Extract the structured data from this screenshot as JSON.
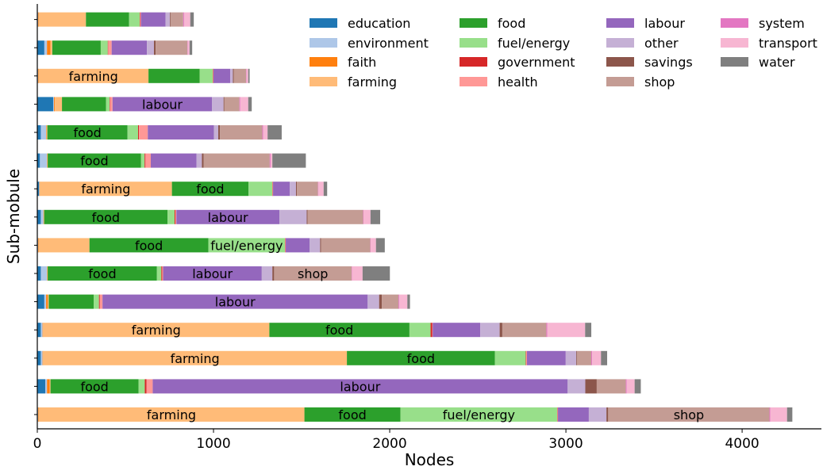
{
  "chart_data": {
    "type": "bar",
    "orientation": "horizontal",
    "stacked": true,
    "xlabel": "Nodes",
    "ylabel": "Sub-mobule",
    "xlim": [
      0,
      4450
    ],
    "xticks": [
      0,
      1000,
      2000,
      3000,
      4000
    ],
    "legend_position": "top-right",
    "categories_list": [
      "education",
      "environment",
      "faith",
      "farming",
      "food",
      "fuel/energy",
      "government",
      "health",
      "labour",
      "other",
      "savings",
      "shop",
      "system",
      "transport",
      "water"
    ],
    "colors": {
      "education": "#1f77b4",
      "environment": "#aec7e8",
      "faith": "#ff7f0e",
      "farming": "#ffbb78",
      "food": "#2ca02c",
      "fuel/energy": "#98df8a",
      "government": "#d62728",
      "health": "#ff9896",
      "labour": "#9467bd",
      "other": "#c5b0d5",
      "savings": "#8c564b",
      "shop": "#c49c94",
      "system": "#e377c2",
      "transport": "#f7b6d2",
      "water": "#7f7f7f"
    },
    "bars": [
      {
        "segments": [
          [
            "education",
            2
          ],
          [
            "environment",
            2
          ],
          [
            "faith",
            2
          ],
          [
            "farming",
            270
          ],
          [
            "food",
            245
          ],
          [
            "fuel/energy",
            60
          ],
          [
            "government",
            2
          ],
          [
            "health",
            5
          ],
          [
            "labour",
            140
          ],
          [
            "other",
            25
          ],
          [
            "savings",
            5
          ],
          [
            "shop",
            70
          ],
          [
            "system",
            5
          ],
          [
            "transport",
            35
          ],
          [
            "water",
            20
          ]
        ]
      },
      {
        "segments": [
          [
            "education",
            40
          ],
          [
            "environment",
            15
          ],
          [
            "faith",
            20
          ],
          [
            "farming",
            10
          ],
          [
            "food",
            275
          ],
          [
            "fuel/energy",
            40
          ],
          [
            "government",
            2
          ],
          [
            "health",
            20
          ],
          [
            "labour",
            200
          ],
          [
            "other",
            40
          ],
          [
            "savings",
            10
          ],
          [
            "shop",
            180
          ],
          [
            "system",
            2
          ],
          [
            "transport",
            10
          ],
          [
            "water",
            15
          ]
        ]
      },
      {
        "segments": [
          [
            "education",
            2
          ],
          [
            "environment",
            2
          ],
          [
            "faith",
            2
          ],
          [
            "farming",
            625
          ],
          [
            "food",
            290
          ],
          [
            "fuel/energy",
            75
          ],
          [
            "government",
            2
          ],
          [
            "health",
            2
          ],
          [
            "labour",
            95
          ],
          [
            "other",
            15
          ],
          [
            "savings",
            5
          ],
          [
            "shop",
            70
          ],
          [
            "system",
            2
          ],
          [
            "transport",
            10
          ],
          [
            "water",
            8
          ]
        ]
      },
      {
        "segments": [
          [
            "education",
            90
          ],
          [
            "environment",
            5
          ],
          [
            "faith",
            5
          ],
          [
            "farming",
            40
          ],
          [
            "food",
            250
          ],
          [
            "fuel/energy",
            20
          ],
          [
            "government",
            2
          ],
          [
            "health",
            15
          ],
          [
            "labour",
            565
          ],
          [
            "other",
            65
          ],
          [
            "savings",
            5
          ],
          [
            "shop",
            85
          ],
          [
            "system",
            5
          ],
          [
            "transport",
            45
          ],
          [
            "water",
            20
          ]
        ]
      },
      {
        "segments": [
          [
            "education",
            20
          ],
          [
            "environment",
            30
          ],
          [
            "faith",
            2
          ],
          [
            "farming",
            5
          ],
          [
            "food",
            455
          ],
          [
            "fuel/energy",
            60
          ],
          [
            "government",
            5
          ],
          [
            "health",
            50
          ],
          [
            "labour",
            375
          ],
          [
            "other",
            25
          ],
          [
            "savings",
            10
          ],
          [
            "shop",
            240
          ],
          [
            "system",
            5
          ],
          [
            "transport",
            25
          ],
          [
            "water",
            80
          ]
        ]
      },
      {
        "segments": [
          [
            "education",
            15
          ],
          [
            "environment",
            40
          ],
          [
            "faith",
            2
          ],
          [
            "farming",
            2
          ],
          [
            "food",
            530
          ],
          [
            "fuel/energy",
            20
          ],
          [
            "government",
            5
          ],
          [
            "health",
            30
          ],
          [
            "labour",
            260
          ],
          [
            "other",
            30
          ],
          [
            "savings",
            10
          ],
          [
            "shop",
            375
          ],
          [
            "system",
            5
          ],
          [
            "transport",
            10
          ],
          [
            "water",
            190
          ]
        ]
      },
      {
        "segments": [
          [
            "education",
            10
          ],
          [
            "environment",
            2
          ],
          [
            "faith",
            2
          ],
          [
            "farming",
            750
          ],
          [
            "food",
            435
          ],
          [
            "fuel/energy",
            135
          ],
          [
            "government",
            2
          ],
          [
            "health",
            2
          ],
          [
            "labour",
            95
          ],
          [
            "other",
            35
          ],
          [
            "savings",
            5
          ],
          [
            "shop",
            120
          ],
          [
            "system",
            2
          ],
          [
            "transport",
            30
          ],
          [
            "water",
            20
          ]
        ]
      },
      {
        "segments": [
          [
            "education",
            20
          ],
          [
            "environment",
            15
          ],
          [
            "faith",
            2
          ],
          [
            "farming",
            2
          ],
          [
            "food",
            700
          ],
          [
            "fuel/energy",
            40
          ],
          [
            "government",
            5
          ],
          [
            "health",
            5
          ],
          [
            "labour",
            585
          ],
          [
            "other",
            155
          ],
          [
            "savings",
            5
          ],
          [
            "shop",
            315
          ],
          [
            "system",
            2
          ],
          [
            "transport",
            40
          ],
          [
            "water",
            55
          ]
        ]
      },
      {
        "segments": [
          [
            "education",
            2
          ],
          [
            "environment",
            2
          ],
          [
            "faith",
            2
          ],
          [
            "farming",
            290
          ],
          [
            "food",
            675
          ],
          [
            "fuel/energy",
            435
          ],
          [
            "government",
            2
          ],
          [
            "health",
            2
          ],
          [
            "labour",
            135
          ],
          [
            "other",
            60
          ],
          [
            "savings",
            5
          ],
          [
            "shop",
            280
          ],
          [
            "system",
            2
          ],
          [
            "transport",
            30
          ],
          [
            "water",
            50
          ]
        ]
      },
      {
        "segments": [
          [
            "education",
            20
          ],
          [
            "environment",
            35
          ],
          [
            "faith",
            2
          ],
          [
            "farming",
            2
          ],
          [
            "food",
            620
          ],
          [
            "fuel/energy",
            25
          ],
          [
            "government",
            5
          ],
          [
            "health",
            5
          ],
          [
            "labour",
            560
          ],
          [
            "other",
            60
          ],
          [
            "savings",
            10
          ],
          [
            "shop",
            440
          ],
          [
            "system",
            2
          ],
          [
            "transport",
            60
          ],
          [
            "water",
            155
          ]
        ]
      },
      {
        "segments": [
          [
            "education",
            40
          ],
          [
            "environment",
            10
          ],
          [
            "faith",
            10
          ],
          [
            "farming",
            5
          ],
          [
            "food",
            255
          ],
          [
            "fuel/energy",
            30
          ],
          [
            "government",
            5
          ],
          [
            "health",
            15
          ],
          [
            "labour",
            1505
          ],
          [
            "other",
            65
          ],
          [
            "savings",
            15
          ],
          [
            "shop",
            95
          ],
          [
            "system",
            5
          ],
          [
            "transport",
            45
          ],
          [
            "water",
            15
          ]
        ]
      },
      {
        "segments": [
          [
            "education",
            20
          ],
          [
            "environment",
            10
          ],
          [
            "faith",
            2
          ],
          [
            "farming",
            1285
          ],
          [
            "food",
            795
          ],
          [
            "fuel/energy",
            120
          ],
          [
            "government",
            10
          ],
          [
            "health",
            2
          ],
          [
            "labour",
            270
          ],
          [
            "other",
            110
          ],
          [
            "savings",
            15
          ],
          [
            "shop",
            250
          ],
          [
            "system",
            5
          ],
          [
            "transport",
            215
          ],
          [
            "water",
            35
          ]
        ]
      },
      {
        "segments": [
          [
            "education",
            20
          ],
          [
            "environment",
            10
          ],
          [
            "faith",
            2
          ],
          [
            "farming",
            1725
          ],
          [
            "food",
            840
          ],
          [
            "fuel/energy",
            175
          ],
          [
            "government",
            2
          ],
          [
            "health",
            5
          ],
          [
            "labour",
            220
          ],
          [
            "other",
            60
          ],
          [
            "savings",
            5
          ],
          [
            "shop",
            80
          ],
          [
            "system",
            5
          ],
          [
            "transport",
            50
          ],
          [
            "water",
            35
          ]
        ]
      },
      {
        "segments": [
          [
            "education",
            45
          ],
          [
            "environment",
            10
          ],
          [
            "faith",
            15
          ],
          [
            "farming",
            5
          ],
          [
            "food",
            500
          ],
          [
            "fuel/energy",
            35
          ],
          [
            "government",
            10
          ],
          [
            "health",
            35
          ],
          [
            "labour",
            2355
          ],
          [
            "other",
            100
          ],
          [
            "savings",
            65
          ],
          [
            "shop",
            165
          ],
          [
            "system",
            5
          ],
          [
            "transport",
            45
          ],
          [
            "water",
            35
          ]
        ]
      },
      {
        "segments": [
          [
            "education",
            2
          ],
          [
            "environment",
            2
          ],
          [
            "faith",
            2
          ],
          [
            "farming",
            1510
          ],
          [
            "food",
            545
          ],
          [
            "fuel/energy",
            890
          ],
          [
            "government",
            2
          ],
          [
            "health",
            2
          ],
          [
            "labour",
            175
          ],
          [
            "other",
            100
          ],
          [
            "savings",
            10
          ],
          [
            "shop",
            915
          ],
          [
            "system",
            5
          ],
          [
            "transport",
            95
          ],
          [
            "water",
            30
          ]
        ]
      }
    ],
    "segment_labels": [
      {
        "bar": 2,
        "category": "farming",
        "text": "farming"
      },
      {
        "bar": 3,
        "category": "labour",
        "text": "labour"
      },
      {
        "bar": 4,
        "category": "food",
        "text": "food"
      },
      {
        "bar": 5,
        "category": "food",
        "text": "food"
      },
      {
        "bar": 6,
        "category": "farming",
        "text": "farming"
      },
      {
        "bar": 6,
        "category": "food",
        "text": "food"
      },
      {
        "bar": 7,
        "category": "food",
        "text": "food"
      },
      {
        "bar": 7,
        "category": "labour",
        "text": "labour"
      },
      {
        "bar": 8,
        "category": "food",
        "text": "food"
      },
      {
        "bar": 8,
        "category": "fuel/energy",
        "text": "fuel/energy"
      },
      {
        "bar": 9,
        "category": "food",
        "text": "food"
      },
      {
        "bar": 9,
        "category": "labour",
        "text": "labour"
      },
      {
        "bar": 9,
        "category": "shop",
        "text": "shop"
      },
      {
        "bar": 10,
        "category": "labour",
        "text": "labour"
      },
      {
        "bar": 11,
        "category": "farming",
        "text": "farming"
      },
      {
        "bar": 11,
        "category": "food",
        "text": "food"
      },
      {
        "bar": 12,
        "category": "farming",
        "text": "farming"
      },
      {
        "bar": 12,
        "category": "food",
        "text": "food"
      },
      {
        "bar": 13,
        "category": "food",
        "text": "food"
      },
      {
        "bar": 13,
        "category": "labour",
        "text": "labour"
      },
      {
        "bar": 14,
        "category": "farming",
        "text": "farming"
      },
      {
        "bar": 14,
        "category": "food",
        "text": "food"
      },
      {
        "bar": 14,
        "category": "fuel/energy",
        "text": "fuel/energy"
      },
      {
        "bar": 14,
        "category": "shop",
        "text": "shop"
      }
    ]
  }
}
